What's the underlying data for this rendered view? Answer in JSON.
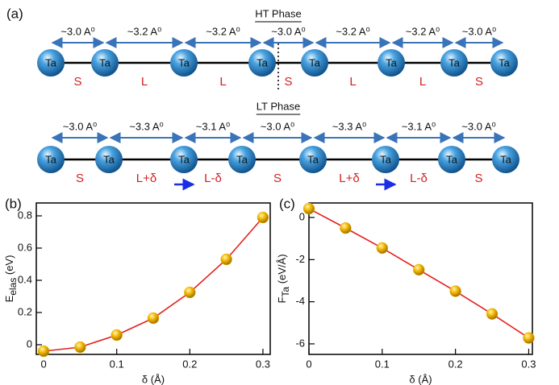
{
  "panel_labels": [
    "(a)",
    "(b)",
    "(c)"
  ],
  "diagram": {
    "ht_phase": {
      "title": "HT Phase",
      "atoms": [
        "Ta",
        "Ta",
        "Ta",
        "Ta",
        "Ta",
        "Ta",
        "Ta",
        "Ta"
      ],
      "distances": [
        "~3.0 A⁰",
        "~3.2 A⁰",
        "~3.2 A⁰",
        "~3.0 A⁰",
        "~3.2 A⁰",
        "~3.2 A⁰",
        "~3.0 A⁰"
      ],
      "bonds": [
        "S",
        "L",
        "L",
        "S",
        "L",
        "L",
        "S"
      ]
    },
    "lt_phase": {
      "title": "LT Phase",
      "atoms": [
        "Ta",
        "Ta",
        "Ta",
        "Ta",
        "Ta",
        "Ta",
        "Ta",
        "Ta"
      ],
      "distances": [
        "~3.0 A⁰",
        "~3.3 A⁰",
        "~3.1 A⁰",
        "~3.0 A⁰",
        "~3.3 A⁰",
        "~3.1 A⁰",
        "~3.0 A⁰"
      ],
      "bonds": [
        "S",
        "L+δ",
        "L-δ",
        "S",
        "L+δ",
        "L-δ",
        "S"
      ]
    }
  },
  "chart_data": [
    {
      "type": "line",
      "xlabel": "δ (Å)",
      "ylabel": {
        "main": "E",
        "sub": "elas",
        "unit": " (eV)"
      },
      "x": [
        0,
        0.05,
        0.1,
        0.15,
        0.2,
        0.25,
        0.3
      ],
      "values": [
        -0.04,
        -0.015,
        0.06,
        0.165,
        0.325,
        0.53,
        0.79
      ],
      "color": "#e3201b",
      "marker_color": "#f2b705",
      "xlim": [
        -0.01,
        0.31
      ],
      "ylim": [
        -0.06,
        0.88
      ],
      "xticks": [
        0,
        0.1,
        0.2,
        0.3
      ],
      "yticks": [
        0,
        0.2,
        0.4,
        0.6,
        0.8
      ]
    },
    {
      "type": "line",
      "xlabel": "δ (Å)",
      "ylabel": {
        "main": "F",
        "sub": "Ta",
        "unit": " (eV/Å)"
      },
      "x": [
        0,
        0.05,
        0.1,
        0.15,
        0.2,
        0.25,
        0.3
      ],
      "values": [
        0.42,
        -0.5,
        -1.45,
        -2.48,
        -3.5,
        -4.58,
        -5.72
      ],
      "color": "#e3201b",
      "marker_color": "#f2b705",
      "xlim": [
        0,
        0.305
      ],
      "ylim": [
        -6.5,
        0.69
      ],
      "xticks": [
        0,
        0.1,
        0.2,
        0.3
      ],
      "yticks": [
        0,
        -2,
        -4,
        -6
      ]
    }
  ]
}
